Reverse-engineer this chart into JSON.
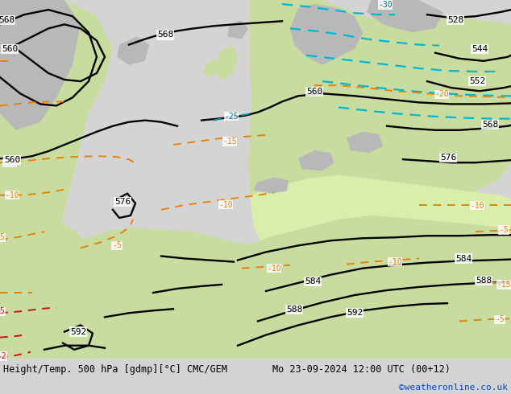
{
  "title_left": "Height/Temp. 500 hPa [gdmp][°C] CMC/GEM",
  "title_right": "Mo 23-09-2024 12:00 UTC (00+12)",
  "credit": "©weatheronline.co.uk",
  "bg_color": "#d4d4d4",
  "land_green": "#c8dca0",
  "land_green2": "#d8eeaa",
  "ocean_color": "#c8d0d8",
  "gray_area": "#b8b8b8",
  "fig_width": 6.34,
  "fig_height": 4.9,
  "dpi": 100
}
